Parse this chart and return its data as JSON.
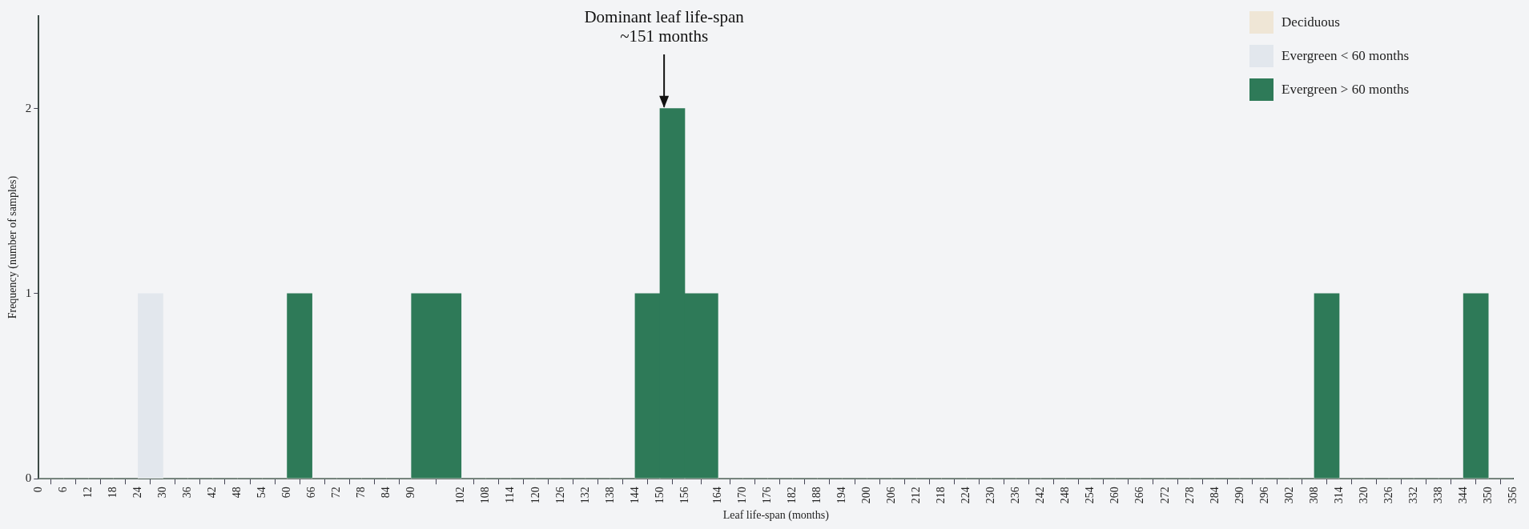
{
  "chart_data": {
    "type": "histogram",
    "xlabel": "Leaf life-span (months)",
    "ylabel": "Frequency (number of samples)",
    "bins": [
      0,
      6,
      12,
      18,
      24,
      30,
      36,
      42,
      48,
      54,
      60,
      66,
      72,
      78,
      84,
      90,
      102,
      108,
      114,
      120,
      126,
      132,
      138,
      144,
      150,
      156,
      164,
      170,
      176,
      182,
      188,
      194,
      200,
      206,
      212,
      218,
      224,
      230,
      236,
      242,
      248,
      254,
      260,
      266,
      272,
      278,
      284,
      290,
      296,
      302,
      308,
      314,
      320,
      326,
      332,
      338,
      344,
      350,
      356
    ],
    "series": [
      {
        "name": "Deciduous",
        "color": "#efe6d6",
        "values": [
          0,
          0,
          0,
          0,
          0,
          0,
          0,
          0,
          0,
          0,
          0,
          0,
          0,
          0,
          0,
          0,
          0,
          0,
          0,
          0,
          0,
          0,
          0,
          0,
          0,
          0,
          0,
          0,
          0,
          0,
          0,
          0,
          0,
          0,
          0,
          0,
          0,
          0,
          0,
          0,
          0,
          0,
          0,
          0,
          0,
          0,
          0,
          0,
          0,
          0,
          0,
          0,
          0,
          0,
          0,
          0,
          0,
          0
        ]
      },
      {
        "name": "Evergreen < 60 months",
        "color": "#e2e7ed",
        "values": [
          0,
          0,
          0,
          0,
          1,
          0,
          0,
          0,
          0,
          0,
          0,
          0,
          0,
          0,
          0,
          0,
          0,
          0,
          0,
          0,
          0,
          0,
          0,
          0,
          0,
          0,
          0,
          0,
          0,
          0,
          0,
          0,
          0,
          0,
          0,
          0,
          0,
          0,
          0,
          0,
          0,
          0,
          0,
          0,
          0,
          0,
          0,
          0,
          0,
          0,
          0,
          0,
          0,
          0,
          0,
          0,
          0,
          0
        ]
      },
      {
        "name": "Evergreen > 60 months",
        "color": "#2e7a58",
        "values": [
          0,
          0,
          0,
          0,
          0,
          0,
          0,
          0,
          0,
          0,
          1,
          0,
          0,
          0,
          0,
          1,
          0,
          0,
          0,
          0,
          0,
          0,
          0,
          1,
          2,
          1,
          0,
          0,
          0,
          0,
          0,
          0,
          0,
          0,
          0,
          0,
          0,
          0,
          0,
          0,
          0,
          0,
          0,
          0,
          0,
          0,
          0,
          0,
          0,
          0,
          1,
          0,
          0,
          0,
          0,
          0,
          1,
          0
        ]
      }
    ],
    "xlim": [
      0,
      356
    ],
    "xticks": [
      0,
      6,
      12,
      18,
      24,
      30,
      36,
      42,
      48,
      54,
      60,
      66,
      72,
      78,
      84,
      90,
      102,
      108,
      114,
      120,
      126,
      132,
      138,
      144,
      150,
      156,
      164,
      170,
      176,
      182,
      188,
      194,
      200,
      206,
      212,
      218,
      224,
      230,
      236,
      242,
      248,
      254,
      260,
      266,
      272,
      278,
      284,
      290,
      296,
      302,
      308,
      314,
      320,
      326,
      332,
      338,
      344,
      350,
      356
    ],
    "ylim": [
      0,
      2.5
    ],
    "yticks": [
      0,
      1,
      2
    ],
    "grid": false,
    "legend": "top right",
    "annotations": [
      {
        "text": "Dominant leaf life-span\n~151 months",
        "x": 151,
        "y": 2
      }
    ]
  }
}
